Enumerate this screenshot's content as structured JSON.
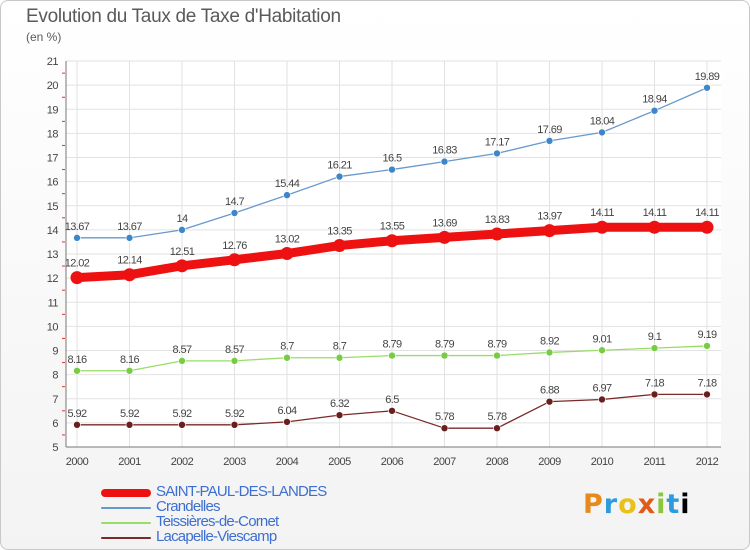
{
  "header": {
    "title": "Evolution du Taux de Taxe d'Habitation",
    "subtitle": "(en %)"
  },
  "logo_text": "Proxiti",
  "chart_data": {
    "type": "line",
    "title": "Evolution du Taux de Taxe d'Habitation",
    "subtitle": "(en %)",
    "xlabel": "",
    "ylabel": "",
    "x": [
      "2000",
      "2001",
      "2002",
      "2003",
      "2004",
      "2005",
      "2006",
      "2007",
      "2008",
      "2009",
      "2010",
      "2011",
      "2012"
    ],
    "ylim": [
      5,
      21
    ],
    "yticks": [
      "5",
      "6",
      "7",
      "8",
      "9",
      "10",
      "11",
      "12",
      "13",
      "14",
      "15",
      "16",
      "17",
      "18",
      "19",
      "20",
      "21"
    ],
    "grid": true,
    "legend_position": "bottom-left",
    "series": [
      {
        "name": "SAINT-PAUL-DES-LANDES",
        "color": "#ee1111",
        "thick": true,
        "values": [
          12.02,
          12.14,
          12.51,
          12.76,
          13.02,
          13.35,
          13.55,
          13.69,
          13.83,
          13.97,
          14.11,
          14.11,
          14.11
        ],
        "labels": [
          "12.02",
          "12.14",
          "12.51",
          "12.76",
          "13.02",
          "13.35",
          "13.55",
          "13.69",
          "13.83",
          "13.97",
          "14.11",
          "14.11",
          "14.11"
        ]
      },
      {
        "name": "Crandelles",
        "color": "#6699cc",
        "point_color": "#3f86c9",
        "values": [
          13.67,
          13.67,
          14,
          14.7,
          15.44,
          16.21,
          16.5,
          16.83,
          17.17,
          17.69,
          18.04,
          18.94,
          19.89
        ],
        "labels": [
          "13.67",
          "13.67",
          "14",
          "14.7",
          "15.44",
          "16.21",
          "16.5",
          "16.83",
          "17.17",
          "17.69",
          "18.04",
          "18.94",
          "19.89"
        ]
      },
      {
        "name": "Teissières-de-Cornet",
        "color": "#99dd66",
        "point_color": "#77cc44",
        "values": [
          8.16,
          8.16,
          8.57,
          8.57,
          8.7,
          8.7,
          8.79,
          8.79,
          8.79,
          8.92,
          9.01,
          9.1,
          9.19
        ],
        "labels": [
          "8.16",
          "8.16",
          "8.57",
          "8.57",
          "8.7",
          "8.7",
          "8.79",
          "8.79",
          "8.79",
          "8.92",
          "9.01",
          "9.1",
          "9.19"
        ]
      },
      {
        "name": "Lacapelle-Viescamp",
        "color": "#7a2a2a",
        "point_color": "#6a1f1f",
        "values": [
          5.92,
          5.92,
          5.92,
          5.92,
          6.04,
          6.32,
          6.5,
          5.78,
          5.78,
          6.88,
          6.97,
          7.18,
          7.18
        ],
        "labels": [
          "5.92",
          "5.92",
          "5.92",
          "5.92",
          "6.04",
          "6.32",
          "6.5",
          "5.78",
          "5.78",
          "6.88",
          "6.97",
          "7.18",
          "7.18"
        ]
      }
    ]
  }
}
